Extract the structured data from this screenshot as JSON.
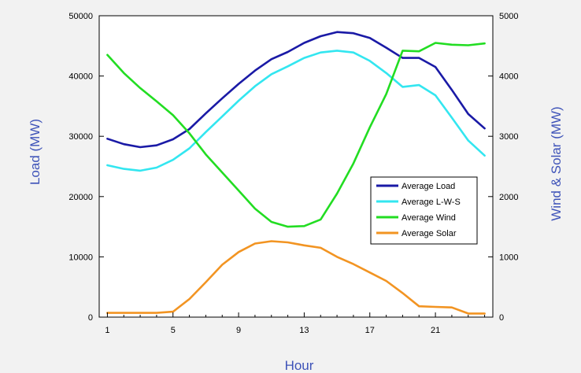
{
  "chart_data": {
    "type": "line",
    "xlabel": "Hour",
    "ylabel": "Load (MW)",
    "y2label": "Wind & Solar (MW)",
    "xlim": [
      0.5,
      24.5
    ],
    "ylim": [
      0,
      50000
    ],
    "y2lim": [
      0,
      5000
    ],
    "x_ticks": [
      1,
      5,
      9,
      13,
      17,
      21
    ],
    "y_ticks": [
      0,
      10000,
      20000,
      30000,
      40000,
      50000
    ],
    "y2_ticks": [
      0,
      1000,
      2000,
      3000,
      4000,
      5000
    ],
    "legend_position": "lower-right",
    "x": [
      1,
      2,
      3,
      4,
      5,
      6,
      7,
      8,
      9,
      10,
      11,
      12,
      13,
      14,
      15,
      16,
      17,
      18,
      19,
      20,
      21,
      22,
      23,
      24
    ],
    "series": [
      {
        "name": "Average Load",
        "axis": "left",
        "color": "#1a1aa6",
        "values": [
          29600,
          28700,
          28200,
          28500,
          29500,
          31200,
          33800,
          36300,
          38700,
          40900,
          42800,
          44000,
          45500,
          46600,
          47300,
          47100,
          46300,
          44700,
          43000,
          43000,
          41500,
          37700,
          33700,
          31300
        ]
      },
      {
        "name": "Average L-W-S",
        "axis": "left",
        "color": "#33e6f0",
        "values": [
          25200,
          24600,
          24300,
          24800,
          26100,
          28000,
          30700,
          33300,
          35900,
          38300,
          40300,
          41600,
          43000,
          43900,
          44200,
          43900,
          42500,
          40500,
          38200,
          38500,
          36800,
          33100,
          29300,
          26800
        ]
      },
      {
        "name": "Average Wind",
        "axis": "right",
        "color": "#22dd22",
        "values": [
          4350,
          4050,
          3800,
          3580,
          3350,
          3050,
          2700,
          2400,
          2100,
          1800,
          1580,
          1500,
          1510,
          1620,
          2050,
          2550,
          3150,
          3700,
          4420,
          4410,
          4550,
          4520,
          4510,
          4540
        ]
      },
      {
        "name": "Average Solar",
        "axis": "right",
        "color": "#f29422",
        "values": [
          70,
          70,
          70,
          70,
          90,
          300,
          580,
          870,
          1080,
          1220,
          1260,
          1240,
          1190,
          1150,
          1000,
          880,
          740,
          600,
          400,
          180,
          170,
          160,
          60,
          60
        ]
      }
    ]
  }
}
